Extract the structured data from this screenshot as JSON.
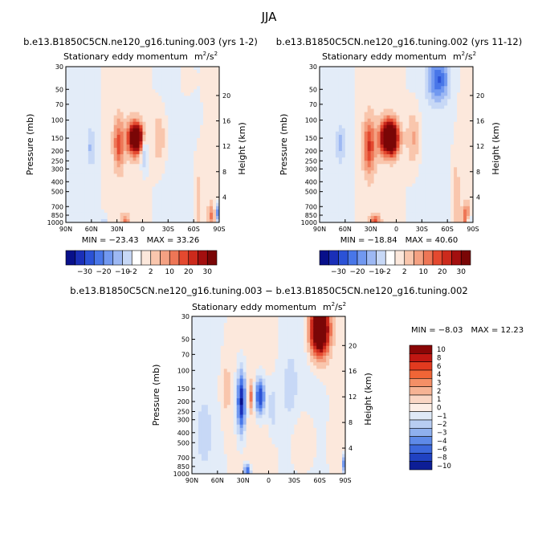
{
  "title": "JJA",
  "chart_data": [
    {
      "type": "heatmap",
      "title": "b.e13.B1850C5CN.ne120_g16.tuning.003 (yrs 1-2)",
      "subtitle_text": "Stationary eddy momentum",
      "subtitle_units_base": "m",
      "subtitle_units_sup1": "2",
      "subtitle_units_slash": "/s",
      "subtitle_units_sup2": "2",
      "ylabel": "Pressure (mb)",
      "ylabel_right": "Height (km)",
      "x_ticks": [
        "90N",
        "60N",
        "30N",
        "0",
        "30S",
        "60S",
        "90S"
      ],
      "y_ticks": [
        "30",
        "50",
        "70",
        "100",
        "150",
        "200",
        "250",
        "300",
        "400",
        "500",
        "700",
        "850",
        "1000"
      ],
      "right_ticks": [
        "20",
        "16",
        "12",
        "8",
        "4"
      ],
      "min_label": "MIN = −23.43",
      "max_label": "MAX = 33.26",
      "min": -23.43,
      "max": 33.26,
      "colorbar_labels": [
        "−30",
        "−20",
        "−10",
        "−2",
        "2",
        "10",
        "20",
        "30"
      ],
      "features": [
        {
          "lat": 8,
          "p": 150,
          "v": 33,
          "wlat": 9,
          "hlog": 0.1
        },
        {
          "lat": 28,
          "p": 170,
          "v": 12,
          "wlat": 6,
          "hlog": 0.16
        },
        {
          "lat": -2,
          "p": 200,
          "v": -9,
          "wlat": 4,
          "hlog": 0.12
        },
        {
          "lat": -20,
          "p": 150,
          "v": 6,
          "wlat": 8,
          "hlog": 0.2
        },
        {
          "lat": 60,
          "p": 180,
          "v": -6,
          "wlat": 5,
          "hlog": 0.12
        },
        {
          "lat": -65,
          "p": 600,
          "v": 5,
          "wlat": 5,
          "hlog": 0.25
        },
        {
          "lat": -80,
          "p": 850,
          "v": 9,
          "wlat": 4,
          "hlog": 0.08
        },
        {
          "lat": -88,
          "p": 800,
          "v": -12,
          "wlat": 2,
          "hlog": 0.06
        },
        {
          "lat": 20,
          "p": 980,
          "v": 8,
          "wlat": 5,
          "hlog": 0.05
        },
        {
          "lat": 45,
          "p": 1000,
          "v": -5,
          "wlat": 4,
          "hlog": 0.05
        },
        {
          "lat": -50,
          "p": 40,
          "v": 2,
          "wlat": 12,
          "hlog": 0.15
        }
      ]
    },
    {
      "type": "heatmap",
      "title": "b.e13.B1850C5CN.ne120_g16.tuning.002 (yrs 11-12)",
      "subtitle_text": "Stationary eddy momentum",
      "subtitle_units_base": "m",
      "subtitle_units_sup1": "2",
      "subtitle_units_slash": "/s",
      "subtitle_units_sup2": "2",
      "ylabel": "Pressure (mb)",
      "ylabel_right": "Height (km)",
      "x_ticks": [
        "90N",
        "60N",
        "30N",
        "0",
        "30S",
        "60S",
        "90S"
      ],
      "y_ticks": [
        "30",
        "50",
        "70",
        "100",
        "150",
        "200",
        "250",
        "300",
        "400",
        "500",
        "700",
        "850",
        "1000"
      ],
      "right_ticks": [
        "20",
        "16",
        "12",
        "8",
        "4"
      ],
      "min_label": "MIN = −18.84",
      "max_label": "MAX = 40.60",
      "min": -18.84,
      "max": 40.6,
      "colorbar_labels": [
        "−30",
        "−20",
        "−10",
        "−2",
        "2",
        "10",
        "20",
        "30"
      ],
      "features": [
        {
          "lat": 8,
          "p": 150,
          "v": 40,
          "wlat": 10,
          "hlog": 0.11
        },
        {
          "lat": 32,
          "p": 180,
          "v": 14,
          "wlat": 7,
          "hlog": 0.18
        },
        {
          "lat": 10,
          "p": 200,
          "v": -3,
          "wlat": 4,
          "hlog": 0.1
        },
        {
          "lat": -20,
          "p": 150,
          "v": 7,
          "wlat": 8,
          "hlog": 0.2
        },
        {
          "lat": 65,
          "p": 170,
          "v": -6,
          "wlat": 5,
          "hlog": 0.12
        },
        {
          "lat": -50,
          "p": 40,
          "v": -14,
          "wlat": 12,
          "hlog": 0.14
        },
        {
          "lat": -70,
          "p": 600,
          "v": 6,
          "wlat": 5,
          "hlog": 0.25
        },
        {
          "lat": -82,
          "p": 850,
          "v": 12,
          "wlat": 4,
          "hlog": 0.08
        },
        {
          "lat": 25,
          "p": 990,
          "v": 12,
          "wlat": 6,
          "hlog": 0.05
        },
        {
          "lat": -86,
          "p": 950,
          "v": -10,
          "wlat": 2,
          "hlog": 0.06
        }
      ]
    },
    {
      "type": "heatmap",
      "title": "b.e13.B1850C5CN.ne120_g16.tuning.003 − b.e13.B1850C5CN.ne120_g16.tuning.002",
      "subtitle_text": "Stationary eddy momentum",
      "subtitle_units_base": "m",
      "subtitle_units_sup1": "2",
      "subtitle_units_slash": "/s",
      "subtitle_units_sup2": "2",
      "ylabel": "Pressure (mb)",
      "ylabel_right": "Height (km)",
      "x_ticks": [
        "90N",
        "60N",
        "30N",
        "0",
        "30S",
        "60S",
        "90S"
      ],
      "y_ticks": [
        "30",
        "50",
        "70",
        "100",
        "150",
        "200",
        "250",
        "300",
        "400",
        "500",
        "700",
        "850",
        "1000"
      ],
      "right_ticks": [
        "20",
        "16",
        "12",
        "8",
        "4"
      ],
      "min_label": "MIN = −8.03",
      "max_label": "MAX = 12.23",
      "min": -8.03,
      "max": 12.23,
      "colorbar_labels": [
        "10",
        "8",
        "6",
        "4",
        "3",
        "2",
        "1",
        "0",
        "−1",
        "−2",
        "−3",
        "−4",
        "−6",
        "−8",
        "−10"
      ],
      "features": [
        {
          "lat": -60,
          "p": 40,
          "v": 12,
          "wlat": 11,
          "hlog": 0.17
        },
        {
          "lat": 32,
          "p": 200,
          "v": -7,
          "wlat": 5,
          "hlog": 0.2
        },
        {
          "lat": 10,
          "p": 180,
          "v": -6,
          "wlat": 6,
          "hlog": 0.12
        },
        {
          "lat": 20,
          "p": 180,
          "v": 3,
          "wlat": 3,
          "hlog": 0.1
        },
        {
          "lat": -5,
          "p": 230,
          "v": -2,
          "wlat": 5,
          "hlog": 0.14
        },
        {
          "lat": -25,
          "p": 150,
          "v": -1.5,
          "wlat": 8,
          "hlog": 0.2
        },
        {
          "lat": 50,
          "p": 150,
          "v": 1.5,
          "wlat": 6,
          "hlog": 0.2
        },
        {
          "lat": 75,
          "p": 400,
          "v": -1.2,
          "wlat": 8,
          "hlog": 0.2
        },
        {
          "lat": 25,
          "p": 950,
          "v": -5,
          "wlat": 4,
          "hlog": 0.05
        },
        {
          "lat": -88,
          "p": 800,
          "v": -4,
          "wlat": 2,
          "hlog": 0.06
        },
        {
          "lat": -40,
          "p": 500,
          "v": 1,
          "wlat": 15,
          "hlog": 0.25
        }
      ]
    }
  ]
}
